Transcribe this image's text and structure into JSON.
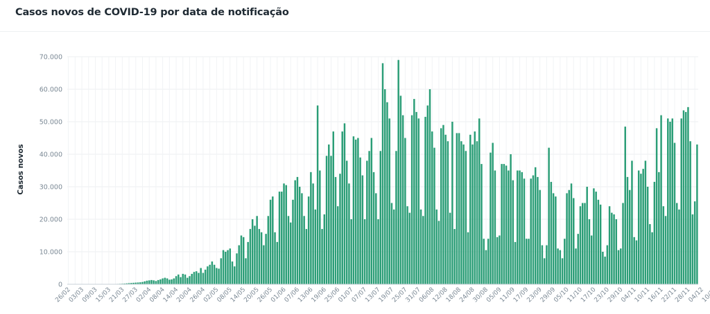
{
  "header": {
    "title": "Casos novos de COVID-19 por data de notificação"
  },
  "chart_data": {
    "type": "bar",
    "title": "Casos novos de COVID-19 por data de notificação",
    "xlabel": "",
    "ylabel": "Casos novos",
    "ylim": [
      0,
      70000
    ],
    "grid": true,
    "bar_color": "#2a9d76",
    "start_date": "26/02",
    "y_ticks": [
      "0",
      "10.000",
      "20.000",
      "30.000",
      "40.000",
      "50.000",
      "60.000",
      "70.000"
    ],
    "x_ticks": [
      "26/02",
      "03/03",
      "09/03",
      "15/03",
      "21/03",
      "27/03",
      "02/04",
      "08/04",
      "14/04",
      "20/04",
      "26/04",
      "02/05",
      "08/05",
      "14/05",
      "20/05",
      "26/05",
      "01/06",
      "07/06",
      "13/06",
      "19/06",
      "25/06",
      "01/07",
      "07/07",
      "13/07",
      "19/07",
      "25/07",
      "31/07",
      "06/08",
      "12/08",
      "18/08",
      "24/08",
      "30/08",
      "05/09",
      "11/09",
      "17/09",
      "23/09",
      "29/09",
      "05/10",
      "11/10",
      "17/10",
      "23/10",
      "29/10",
      "04/11",
      "10/11",
      "16/11",
      "22/11",
      "28/11",
      "04/12",
      "10/12"
    ],
    "values": [
      0,
      0,
      0,
      0,
      0,
      0,
      0,
      0,
      0,
      0,
      0,
      0,
      0,
      0,
      0,
      0,
      0,
      0,
      50,
      50,
      60,
      80,
      120,
      150,
      180,
      220,
      280,
      350,
      400,
      450,
      500,
      550,
      600,
      700,
      900,
      1100,
      1200,
      1300,
      1200,
      1000,
      1300,
      1500,
      1800,
      2000,
      1800,
      1400,
      1500,
      1800,
      2500,
      3000,
      2200,
      3200,
      3000,
      2000,
      2500,
      3200,
      3800,
      4000,
      3500,
      5000,
      3500,
      4500,
      5500,
      6000,
      7000,
      6000,
      5000,
      4800,
      8000,
      10500,
      10000,
      10500,
      11000,
      7000,
      5500,
      9500,
      12000,
      15000,
      14500,
      8000,
      13000,
      17000,
      20000,
      18000,
      21000,
      17000,
      16000,
      12000,
      15500,
      21000,
      26000,
      27000,
      16000,
      13000,
      28500,
      28500,
      31000,
      30500,
      21000,
      19000,
      26000,
      32000,
      33000,
      30000,
      28000,
      21000,
      17000,
      27000,
      34500,
      31000,
      23000,
      55000,
      35000,
      17000,
      21500,
      39500,
      43000,
      39500,
      47000,
      33000,
      24000,
      34000,
      47000,
      49500,
      38000,
      31000,
      20000,
      45500,
      44500,
      45000,
      39000,
      33500,
      20000,
      38000,
      41000,
      45000,
      34500,
      28000,
      20000,
      41000,
      68000,
      60000,
      56000,
      51000,
      25000,
      23000,
      41000,
      69000,
      58000,
      52000,
      45000,
      24000,
      22000,
      52000,
      57000,
      53000,
      51000,
      23000,
      21000,
      51500,
      55000,
      60000,
      47000,
      42000,
      23000,
      19500,
      48000,
      49000,
      46000,
      44000,
      22000,
      50000,
      17000,
      46500,
      46500,
      44000,
      43000,
      41000,
      16000,
      46000,
      43000,
      47000,
      44000,
      51000,
      37000,
      14000,
      10500,
      14000,
      40500,
      43500,
      35000,
      14500,
      15000,
      37000,
      37000,
      36500,
      35000,
      40000,
      32000,
      13000,
      35000,
      35000,
      34500,
      32500,
      14000,
      14000,
      32500,
      33500,
      36000,
      33000,
      29000,
      12000,
      8000,
      12000,
      42000,
      31500,
      28000,
      27000,
      11000,
      10500,
      8000,
      14000,
      28000,
      29000,
      31000,
      26500,
      11000,
      15500,
      24000,
      25000,
      25000,
      30000,
      20000,
      15000,
      29500,
      28500,
      26000,
      24500,
      10000,
      8500,
      12000,
      24000,
      22000,
      21500,
      20000,
      10500,
      11000,
      25000,
      48500,
      33000,
      29000,
      38000,
      14500,
      13500,
      35000,
      34000,
      35500,
      38000,
      30000,
      18500,
      16000,
      31500,
      48000,
      34500,
      52000,
      24000,
      21000,
      51000,
      50000,
      51000,
      43500,
      25000,
      23000,
      51000,
      53500,
      53000,
      54500,
      44000,
      21500,
      25500,
      43000
    ]
  }
}
